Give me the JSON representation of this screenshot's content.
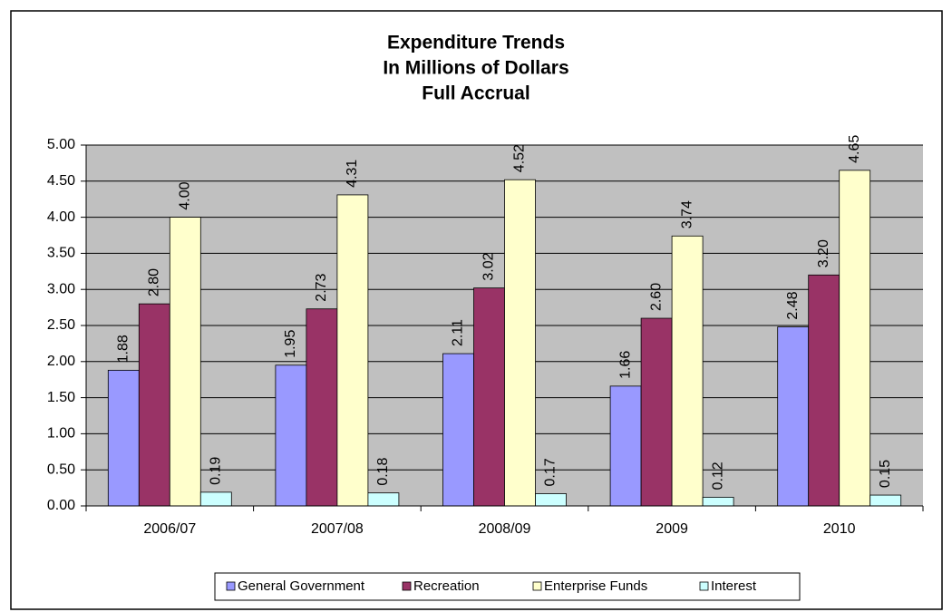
{
  "chart_data": {
    "type": "bar",
    "title": [
      "Expenditure Trends",
      "In Millions of Dollars",
      "Full Accrual"
    ],
    "categories": [
      "2006/07",
      "2007/08",
      "2008/09",
      "2009",
      "2010"
    ],
    "series": [
      {
        "name": "General Government",
        "color": "#9999ff",
        "values": [
          1.88,
          1.95,
          2.11,
          1.66,
          2.48
        ],
        "value_labels": [
          "1.88",
          "1.95",
          "2.11",
          "1.66",
          "2.48"
        ]
      },
      {
        "name": "Recreation",
        "color": "#993366",
        "values": [
          2.8,
          2.73,
          3.02,
          2.6,
          3.2
        ],
        "value_labels": [
          "2.80",
          "2.73",
          "3.02",
          "2.60",
          "3.20"
        ]
      },
      {
        "name": "Enterprise Funds",
        "color": "#ffffcc",
        "values": [
          4.0,
          4.31,
          4.52,
          3.74,
          4.65
        ],
        "value_labels": [
          "4.00",
          "4.31",
          "4.52",
          "3.74",
          "4.65"
        ]
      },
      {
        "name": "Interest",
        "color": "#ccffff",
        "values": [
          0.19,
          0.18,
          0.17,
          0.12,
          0.15
        ],
        "value_labels": [
          "0.19",
          "0.18",
          "0.17",
          "0.12",
          "0.15"
        ]
      }
    ],
    "ylim": [
      0,
      5
    ],
    "yticks": [
      {
        "value": 0,
        "label": "0.00"
      },
      {
        "value": 0.5,
        "label": "0.50"
      },
      {
        "value": 1,
        "label": "1.00"
      },
      {
        "value": 1.5,
        "label": "1.50"
      },
      {
        "value": 2,
        "label": "2.00"
      },
      {
        "value": 2.5,
        "label": "2.50"
      },
      {
        "value": 3,
        "label": "3.00"
      },
      {
        "value": 3.5,
        "label": "3.50"
      },
      {
        "value": 4,
        "label": "4.00"
      },
      {
        "value": 4.5,
        "label": "4.50"
      },
      {
        "value": 5,
        "label": "5.00"
      }
    ],
    "grid": true,
    "plot_background": "#c0c0c0",
    "legend": "bottom"
  }
}
